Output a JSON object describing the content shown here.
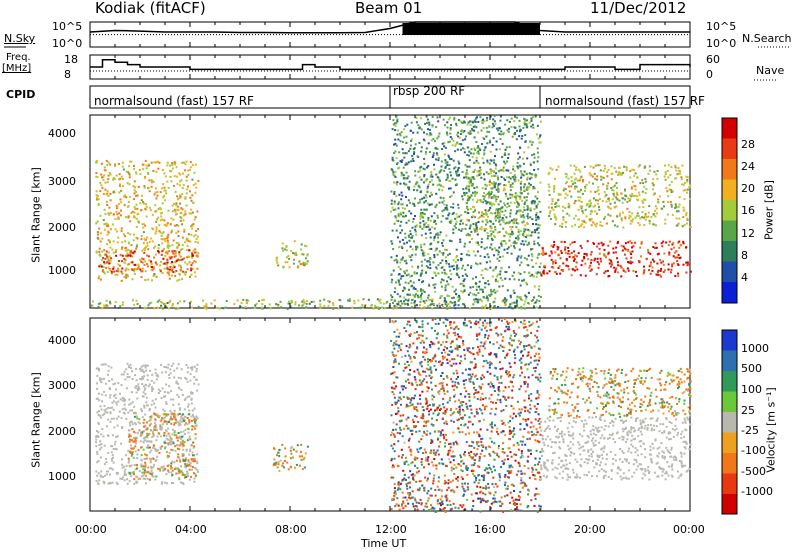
{
  "header": {
    "station": "Kodiak (fitACF)",
    "beam": "Beam 01",
    "date": "11/Dec/2012"
  },
  "top_panels": {
    "nsky_label": "N.Sky",
    "nsearch_label": "N.Search",
    "freq_label_1": "Freq.",
    "freq_label_2": "[MHz]",
    "nave_label": "Nave",
    "cpid_label": "CPID",
    "noise_ticks_left": [
      "10^5",
      "10^0"
    ],
    "noise_ticks_right": [
      "10^5",
      "10^0"
    ],
    "freq_ticks": [
      "18",
      "8"
    ],
    "nave_ticks": [
      "60",
      "0"
    ]
  },
  "cpid_modes": [
    {
      "label": "normalsound (fast) 157 RF",
      "start_ut": 0,
      "end_ut": 12
    },
    {
      "label": "rbsp 200 RF",
      "start_ut": 12,
      "end_ut": 18
    },
    {
      "label": "normalsound (fast) 157 RF",
      "start_ut": 18,
      "end_ut": 24
    }
  ],
  "power_panel": {
    "ylabel": "Slant Range [km]",
    "yticks": [
      "4000",
      "3000",
      "2000",
      "1000"
    ],
    "colorbar_label": "Power [dB]",
    "colorbar_ticks": [
      "28",
      "24",
      "20",
      "16",
      "12",
      "8",
      "4"
    ],
    "colors": [
      "#0b1fd6",
      "#1f4fa8",
      "#2e7d5b",
      "#5aa548",
      "#a3cc3a",
      "#f0b020",
      "#f07a18",
      "#e83a14",
      "#d40000"
    ]
  },
  "velocity_panel": {
    "ylabel": "Slant Range [km]",
    "yticks": [
      "4000",
      "3000",
      "2000",
      "1000"
    ],
    "colorbar_label": "Velocity [m s⁻¹]",
    "colorbar_ticks": [
      "1000",
      "500",
      "100",
      "25",
      "-25",
      "-100",
      "-500",
      "-1000"
    ],
    "colors": [
      "#1a3ad0",
      "#2f6fb0",
      "#2f9a5a",
      "#6ac83a",
      "#b8b8b0",
      "#f0a020",
      "#f07818",
      "#e83810",
      "#d00000"
    ]
  },
  "xaxis": {
    "label": "Time UT",
    "ticks": [
      "00:00",
      "04:00",
      "08:00",
      "12:00",
      "16:00",
      "20:00",
      "00:00"
    ]
  },
  "chart_data": [
    {
      "type": "line",
      "title": "Kodiak (fitACF)",
      "xlabel": "",
      "ylabel": "N.Sky",
      "series": [
        {
          "name": "N.Sky",
          "x": [
            0,
            1,
            2,
            3,
            4,
            5,
            6,
            7,
            8,
            9,
            10,
            11,
            12,
            13,
            14,
            15,
            16,
            17,
            18,
            19,
            20,
            21,
            22,
            23,
            24
          ],
          "values": [
            1000.0,
            2000.0,
            1500.0,
            1000.0,
            1000.0,
            1000.0,
            800.0,
            800.0,
            700.0,
            700.0,
            700.0,
            800.0,
            5000.0,
            100000.0,
            100000.0,
            100000.0,
            100000.0,
            100000.0,
            2000.0,
            1000.0,
            1000.0,
            1000.0,
            1000.0,
            1000.0,
            1000.0
          ]
        },
        {
          "name": "N.Search",
          "x": [
            0,
            2,
            4,
            6,
            8,
            10,
            12,
            14,
            16,
            18,
            20,
            22,
            24
          ],
          "values": [
            300.0,
            300.0,
            300.0,
            300.0,
            300.0,
            300.0,
            300.0,
            300.0,
            300.0,
            300.0,
            300.0,
            300.0,
            300.0
          ]
        }
      ]
    },
    {
      "type": "line",
      "xlabel": "",
      "ylabel": "Freq. [MHz]",
      "series": [
        {
          "name": "Freq.",
          "x": [
            0,
            0.5,
            1,
            1.5,
            2,
            3,
            4,
            5,
            6,
            7,
            8,
            8.5,
            9,
            10,
            11,
            12,
            18,
            19,
            20,
            21,
            22,
            23,
            24
          ],
          "values": [
            13,
            16,
            15,
            14,
            13,
            13,
            12,
            12,
            12,
            12,
            12,
            14,
            13,
            12,
            12,
            12,
            12,
            13,
            13,
            12,
            14,
            14,
            13
          ]
        },
        {
          "name": "Nave",
          "x": [
            0,
            12,
            18,
            24
          ],
          "values": [
            20,
            20,
            20,
            20
          ]
        }
      ]
    },
    {
      "type": "heatmap",
      "title": "Beam 01",
      "xlabel": "Time UT",
      "ylabel": "Slant Range [km]",
      "xlim": [
        0,
        24
      ],
      "ylim": [
        180,
        4500
      ],
      "colorbar": "Power [dB]",
      "clim": [
        0,
        30
      ],
      "regions": [
        {
          "t_start": 0.2,
          "t_end": 4.3,
          "r_start": 800,
          "r_end": 3500,
          "value_dB": 18
        },
        {
          "t_start": 0.3,
          "t_end": 4.2,
          "r_start": 1000,
          "r_end": 1500,
          "value_dB": 24
        },
        {
          "t_start": 7.3,
          "t_end": 8.7,
          "r_start": 1100,
          "r_end": 1700,
          "value_dB": 16
        },
        {
          "t_start": 0,
          "t_end": 18,
          "r_start": 180,
          "r_end": 400,
          "value_dB": 14
        },
        {
          "t_start": 12,
          "t_end": 18,
          "r_start": 180,
          "r_end": 4500,
          "value_dB": 10
        },
        {
          "t_start": 15,
          "t_end": 17.5,
          "r_start": 1800,
          "r_end": 3300,
          "value_dB": 14
        },
        {
          "t_start": 18,
          "t_end": 24,
          "r_start": 900,
          "r_end": 1700,
          "value_dB": 26
        },
        {
          "t_start": 18.3,
          "t_end": 24,
          "r_start": 2000,
          "r_end": 3400,
          "value_dB": 16
        }
      ]
    },
    {
      "type": "heatmap",
      "xlabel": "Time UT",
      "ylabel": "Slant Range [km]",
      "xlim": [
        0,
        24
      ],
      "ylim": [
        180,
        4500
      ],
      "colorbar": "Velocity [m s⁻¹]",
      "clim": [
        -1000,
        1000
      ],
      "regions": [
        {
          "t_start": 0.2,
          "t_end": 4.3,
          "r_start": 800,
          "r_end": 3500,
          "value_ms": 0
        },
        {
          "t_start": 1.5,
          "t_end": 4.2,
          "r_start": 900,
          "r_end": 2400,
          "value_ms": -120
        },
        {
          "t_start": 7.3,
          "t_end": 8.7,
          "r_start": 1100,
          "r_end": 1700,
          "value_ms": -100
        },
        {
          "t_start": 12,
          "t_end": 18,
          "r_start": 180,
          "r_end": 4500,
          "value_ms": -300
        },
        {
          "t_start": 18,
          "t_end": 24,
          "r_start": 900,
          "r_end": 2300,
          "value_ms": 0
        },
        {
          "t_start": 18.3,
          "t_end": 24,
          "r_start": 2300,
          "r_end": 3400,
          "value_ms": -100
        }
      ]
    }
  ]
}
